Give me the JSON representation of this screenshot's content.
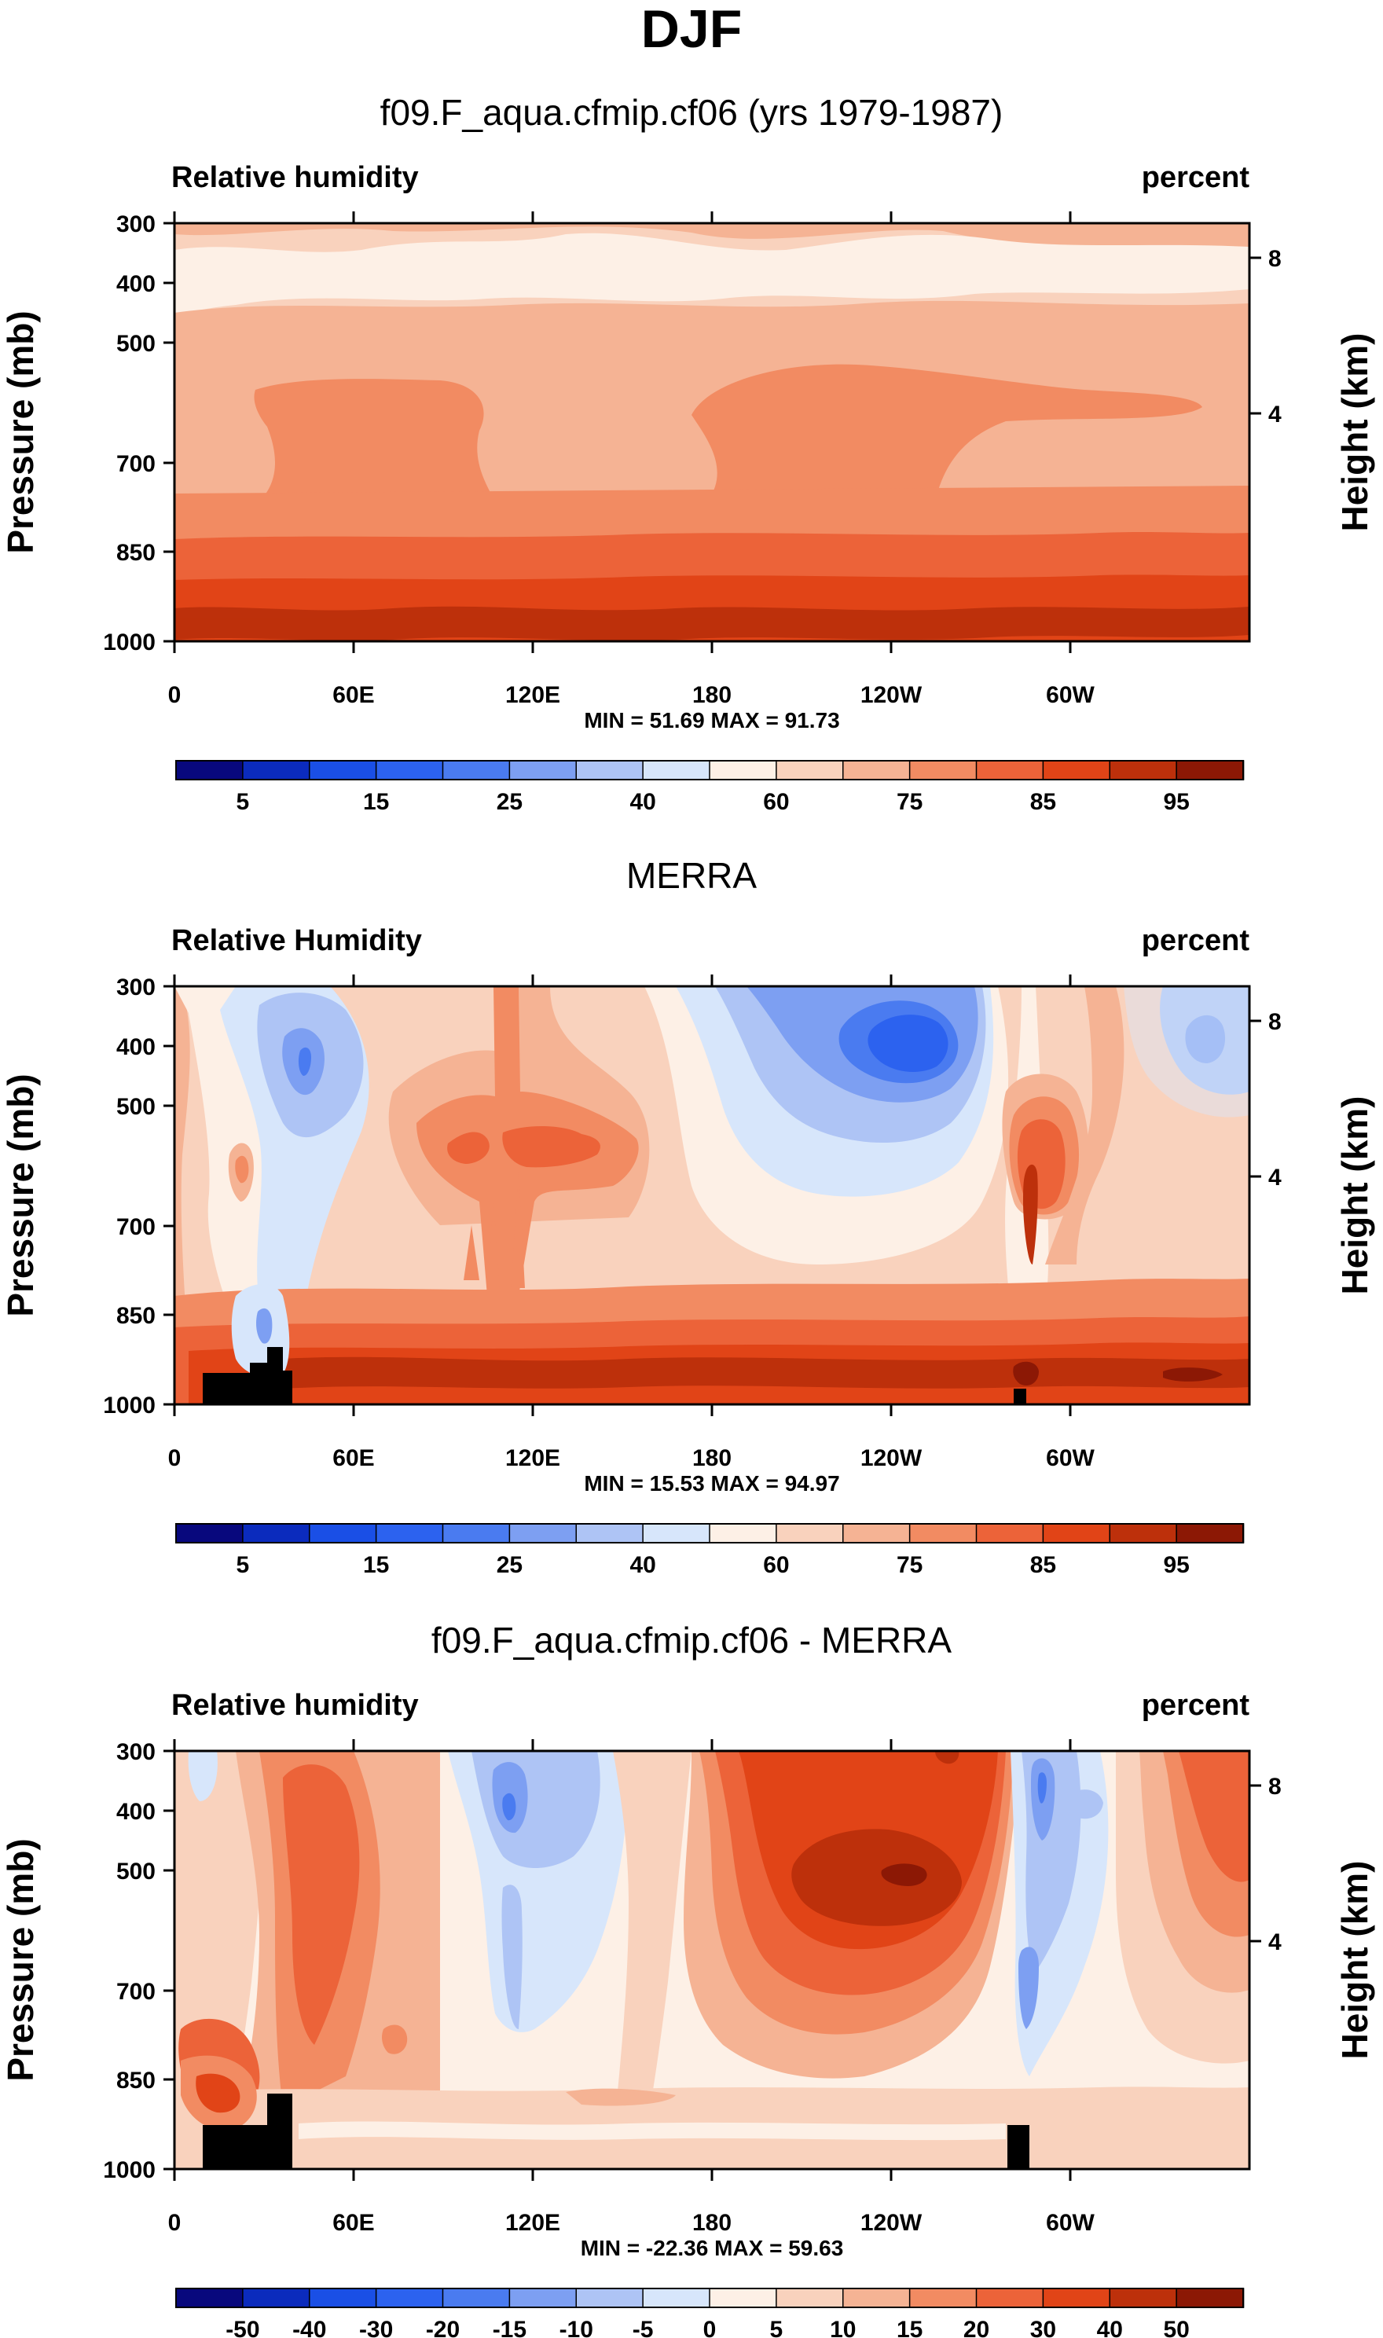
{
  "page_title": "DJF",
  "chart_data": [
    {
      "type": "contour",
      "subtitle": "f09.F_aqua.cfmip.cf06 (yrs 1979-1987)",
      "left_label": "Relative humidity",
      "right_label": "percent",
      "ylabel": "Pressure (mb)",
      "ylabel_right": "Height (km)",
      "xticks": [
        "0",
        "60E",
        "120E",
        "180",
        "120W",
        "60W"
      ],
      "yticks": [
        "300",
        "400",
        "500",
        "700",
        "850",
        "1000"
      ],
      "yticks_right": [
        "8",
        "4"
      ],
      "stats": "MIN = 51.69 MAX = 91.73",
      "colorbar_labels": [
        "5",
        "15",
        "25",
        "40",
        "60",
        "75",
        "85",
        "95"
      ],
      "levels": [
        "5",
        "10",
        "15",
        "20",
        "25",
        "30",
        "40",
        "50",
        "60",
        "70",
        "75",
        "80",
        "85",
        "90",
        "95"
      ],
      "color_scale": [
        "#08087d",
        "#0b2bbd",
        "#1a4fe6",
        "#2c62ef",
        "#4a7bf0",
        "#7d9ff2",
        "#aec4f5",
        "#d7e6fb",
        "#fdf0e6",
        "#f9d2bd",
        "#f5b394",
        "#f28b62",
        "#ec6339",
        "#e14417",
        "#bd300b",
        "#8c1805"
      ]
    },
    {
      "type": "contour",
      "subtitle": "MERRA",
      "left_label": "Relative Humidity",
      "right_label": "percent",
      "ylabel": "Pressure (mb)",
      "ylabel_right": "Height (km)",
      "xticks": [
        "0",
        "60E",
        "120E",
        "180",
        "120W",
        "60W"
      ],
      "yticks": [
        "300",
        "400",
        "500",
        "700",
        "850",
        "1000"
      ],
      "yticks_right": [
        "8",
        "4"
      ],
      "stats": "MIN = 15.53 MAX = 94.97",
      "colorbar_labels": [
        "5",
        "15",
        "25",
        "40",
        "60",
        "75",
        "85",
        "95"
      ],
      "levels": [
        "5",
        "10",
        "15",
        "20",
        "25",
        "30",
        "40",
        "50",
        "60",
        "70",
        "75",
        "80",
        "85",
        "90",
        "95"
      ],
      "color_scale": [
        "#08087d",
        "#0b2bbd",
        "#1a4fe6",
        "#2c62ef",
        "#4a7bf0",
        "#7d9ff2",
        "#aec4f5",
        "#d7e6fb",
        "#fdf0e6",
        "#f9d2bd",
        "#f5b394",
        "#f28b62",
        "#ec6339",
        "#e14417",
        "#bd300b",
        "#8c1805"
      ]
    },
    {
      "type": "contour",
      "subtitle": "f09.F_aqua.cfmip.cf06 - MERRA",
      "left_label": "Relative humidity",
      "right_label": "percent",
      "ylabel": "Pressure (mb)",
      "ylabel_right": "Height (km)",
      "xticks": [
        "0",
        "60E",
        "120E",
        "180",
        "120W",
        "60W"
      ],
      "yticks": [
        "300",
        "400",
        "500",
        "700",
        "850",
        "1000"
      ],
      "yticks_right": [
        "8",
        "4"
      ],
      "stats": "MIN = -22.36 MAX = 59.63",
      "colorbar_labels": [
        "-50",
        "-40",
        "-30",
        "-20",
        "-15",
        "-10",
        "-5",
        "0",
        "5",
        "10",
        "15",
        "20",
        "30",
        "40",
        "50"
      ],
      "levels": [
        "-50",
        "-40",
        "-30",
        "-20",
        "-15",
        "-10",
        "-5",
        "0",
        "5",
        "10",
        "15",
        "20",
        "30",
        "40",
        "50"
      ],
      "color_scale": [
        "#08087d",
        "#0b2bbd",
        "#1a4fe6",
        "#2c62ef",
        "#4a7bf0",
        "#7d9ff2",
        "#aec4f5",
        "#d7e6fb",
        "#fdf0e6",
        "#f9d2bd",
        "#f5b394",
        "#f28b62",
        "#ec6339",
        "#e14417",
        "#bd300b",
        "#8c1805"
      ]
    }
  ]
}
